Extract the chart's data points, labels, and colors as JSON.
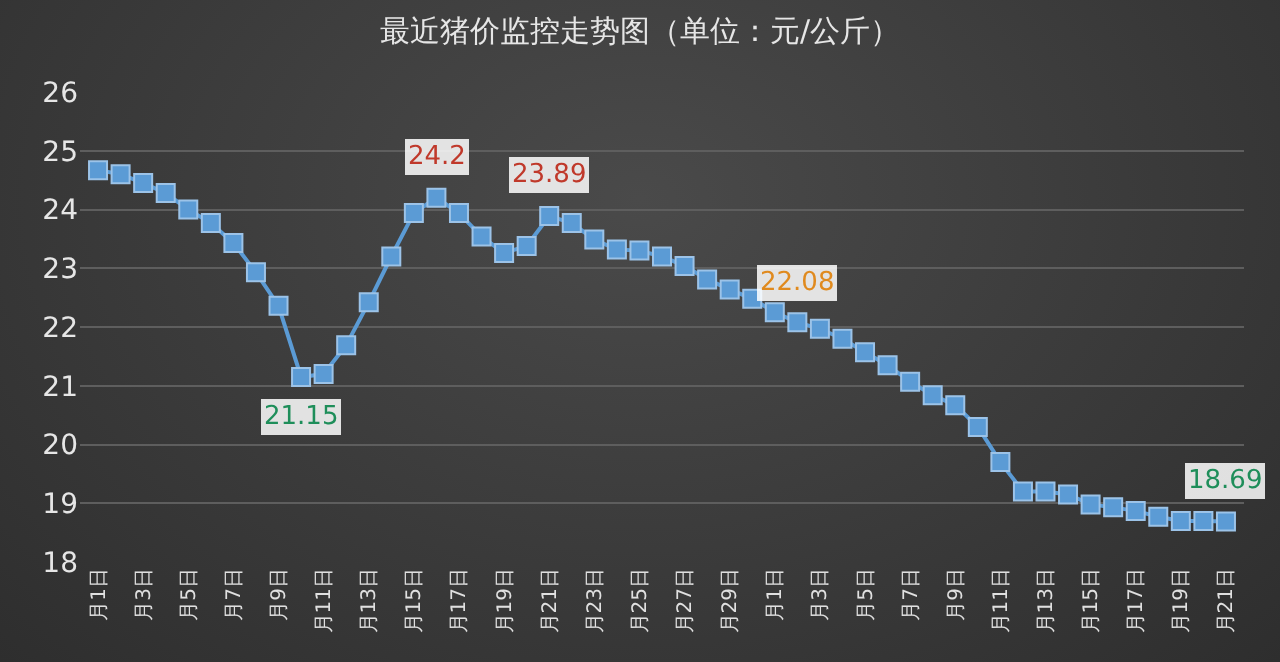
{
  "chart_data": {
    "type": "line",
    "title": "最近猪价监控走势图（单位：元/公斤）",
    "categories": [
      "月1日",
      null,
      "月3日",
      null,
      "月5日",
      null,
      "月7日",
      null,
      "月9日",
      null,
      "月11日",
      null,
      "月13日",
      null,
      "月15日",
      null,
      "月17日",
      null,
      "月19日",
      null,
      "月21日",
      null,
      "月23日",
      null,
      "月25日",
      null,
      "月27日",
      null,
      "月29日",
      null,
      "月1日",
      null,
      "月3日",
      null,
      "月5日",
      null,
      "月7日",
      null,
      "月9日",
      null,
      "月11日",
      null,
      "月13日",
      null,
      "月15日",
      null,
      "月17日",
      null,
      "月19日",
      null,
      "月21日"
    ],
    "series": [
      {
        "color": "#5b9bd5",
        "values": [
          24.67,
          24.6,
          24.45,
          24.28,
          24.0,
          23.77,
          23.43,
          22.93,
          22.36,
          21.15,
          21.2,
          21.69,
          22.42,
          23.2,
          23.94,
          24.2,
          23.94,
          23.54,
          23.26,
          23.38,
          23.89,
          23.77,
          23.49,
          23.32,
          23.3,
          23.2,
          23.04,
          22.81,
          22.64,
          22.48,
          22.25,
          22.08,
          21.97,
          21.8,
          21.57,
          21.35,
          21.07,
          20.84,
          20.67,
          20.3,
          19.7,
          19.2,
          19.2,
          19.15,
          18.98,
          18.93,
          18.87,
          18.77,
          18.7,
          18.7,
          18.69
        ],
        "value_labels": [
          null,
          null,
          null,
          null,
          null,
          null,
          null,
          null,
          null,
          "21.15",
          null,
          null,
          null,
          null,
          null,
          "24.2",
          null,
          null,
          null,
          null,
          "23.89",
          null,
          null,
          null,
          null,
          null,
          null,
          null,
          null,
          null,
          null,
          "22.08",
          null,
          null,
          null,
          null,
          null,
          null,
          null,
          null,
          null,
          null,
          null,
          null,
          null,
          null,
          null,
          null,
          null,
          null,
          "18.69"
        ]
      }
    ],
    "ylim": [
      18,
      26
    ],
    "yticks": [
      18,
      19,
      20,
      21,
      22,
      23,
      24,
      25,
      26
    ],
    "grid": "y",
    "marker": "square",
    "line_style": "solid"
  }
}
